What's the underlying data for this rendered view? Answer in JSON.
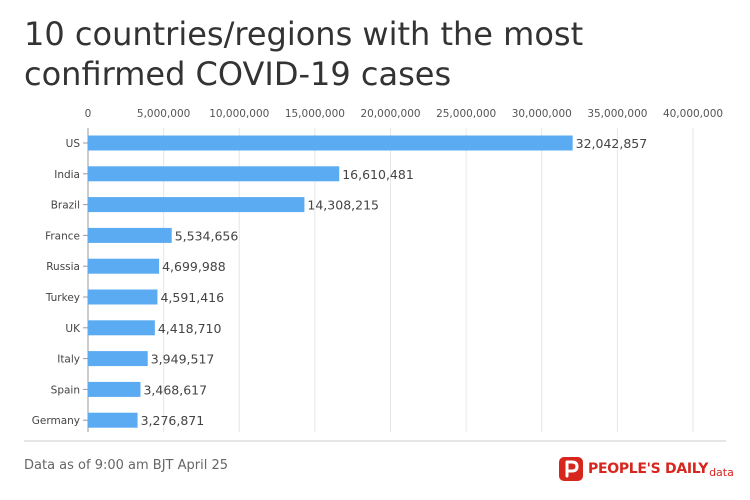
{
  "chart_data": {
    "type": "bar",
    "orientation": "horizontal",
    "title": "10 countries/regions with the most confirmed COVID-19 cases",
    "categories": [
      "US",
      "India",
      "Brazil",
      "France",
      "Russia",
      "Turkey",
      "UK",
      "Italy",
      "Spain",
      "Germany"
    ],
    "values": [
      32042857,
      16610481,
      14308215,
      5534656,
      4699988,
      4591416,
      4418710,
      3949517,
      3468617,
      3276871
    ],
    "value_labels": [
      "32,042,857",
      "16,610,481",
      "14,308,215",
      "5,534,656",
      "4,699,988",
      "4,591,416",
      "4,418,710",
      "3,949,517",
      "3,468,617",
      "3,276,871"
    ],
    "xlim": [
      0,
      40000000
    ],
    "ticks": [
      0,
      5000000,
      10000000,
      15000000,
      20000000,
      25000000,
      30000000,
      35000000,
      40000000
    ],
    "tick_labels": [
      "0",
      "5,000,000",
      "10,000,000",
      "15,000,000",
      "20,000,000",
      "25,000,000",
      "30,000,000",
      "35,000,000",
      "40,000,000"
    ],
    "axis_position": "top",
    "grid": true,
    "bar_color": "#5aabf1"
  },
  "footnote": "Data as of 9:00 am BJT April 25",
  "logo": {
    "main": "PEOPLE'S DAILY",
    "sub": "data",
    "color": "#d7261e"
  }
}
